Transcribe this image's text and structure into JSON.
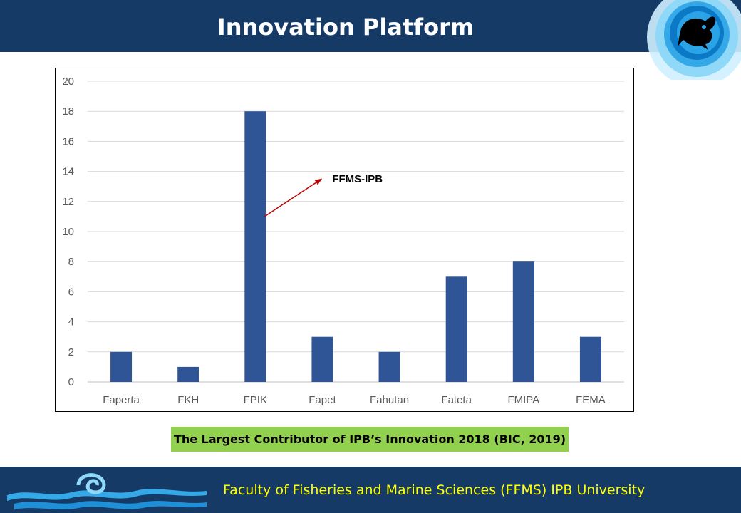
{
  "header": {
    "title": "Innovation Platform"
  },
  "icons": {
    "header_logo": "fish-icon",
    "footer_logo": "wave-icon"
  },
  "colors": {
    "header_bg": "#163a66",
    "bar": "#2f5597",
    "annotation_arrow": "#c00000",
    "caption_bg": "#92d050",
    "footer_text": "#ffff00"
  },
  "chart_data": {
    "type": "bar",
    "categories": [
      "Faperta",
      "FKH",
      "FPIK",
      "Fapet",
      "Fahutan",
      "Fateta",
      "FMIPA",
      "FEMA"
    ],
    "values": [
      2,
      1,
      18,
      3,
      2,
      7,
      8,
      3
    ],
    "ylim": [
      0,
      20
    ],
    "yticks": [
      0,
      2,
      4,
      6,
      8,
      10,
      12,
      14,
      16,
      18,
      20
    ],
    "grid": true,
    "legend": "none",
    "annotation": {
      "text": "FFMS-IPB",
      "target_category": "FPIK"
    }
  },
  "caption": {
    "text": "The Largest Contributor  of IPB’s Innovation  2018 (BIC, 2019)"
  },
  "footer": {
    "text": "Faculty of Fisheries and Marine Sciences (FFMS) IPB University"
  }
}
